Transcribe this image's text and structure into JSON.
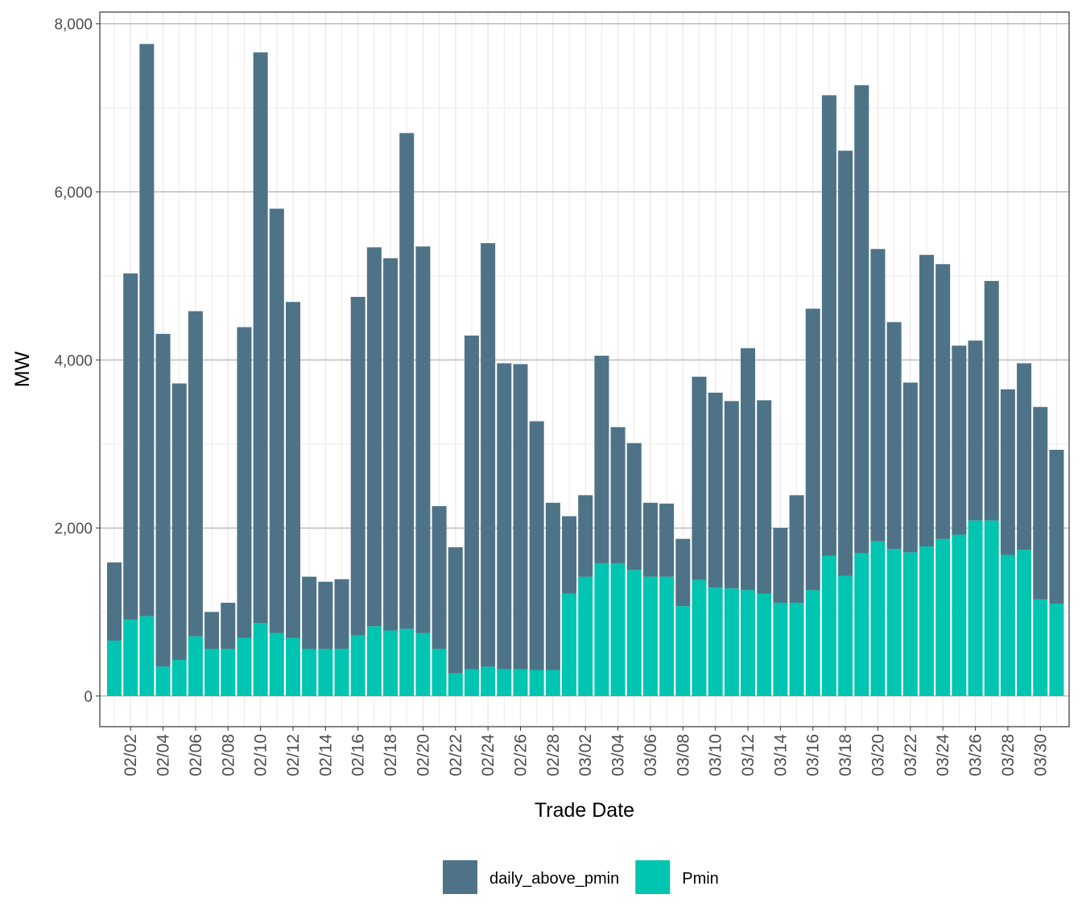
{
  "chart_data": {
    "type": "stacked_bar",
    "x_label": "Trade Date",
    "y_label": "MW",
    "categories": [
      null,
      "02/02",
      null,
      "02/04",
      null,
      "02/06",
      null,
      "02/08",
      null,
      "02/10",
      null,
      "02/12",
      null,
      "02/14",
      null,
      "02/16",
      null,
      "02/18",
      null,
      "02/20",
      null,
      "02/22",
      null,
      "02/24",
      null,
      "02/26",
      null,
      "02/28",
      null,
      "03/02",
      null,
      "03/04",
      null,
      "03/06",
      null,
      "03/08",
      null,
      "03/10",
      null,
      "03/12",
      null,
      "03/14",
      null,
      "03/16",
      null,
      "03/18",
      null,
      "03/20",
      null,
      "03/22",
      null,
      "03/24",
      null,
      "03/26",
      null,
      "03/28",
      null,
      "03/30",
      null
    ],
    "series": [
      {
        "name": "daily_above_pmin",
        "color": "#4e7387",
        "values": [
          930,
          4120,
          6810,
          3960,
          3290,
          3870,
          440,
          550,
          3700,
          6790,
          5050,
          4000,
          860,
          800,
          830,
          4030,
          4510,
          4430,
          5900,
          4600,
          1700,
          1500,
          3970,
          5040,
          3640,
          3630,
          2960,
          1990,
          920,
          970,
          2470,
          1620,
          1510,
          880,
          870,
          800,
          2420,
          2320,
          2230,
          2880,
          2300,
          890,
          1280,
          3350,
          5480,
          5060,
          5570,
          3480,
          2700,
          2020,
          3470,
          3270,
          2250,
          2140,
          2850,
          1970,
          2220,
          2290,
          1830
        ]
      },
      {
        "name": "Pmin",
        "color": "#00c5b0",
        "values": [
          660,
          910,
          950,
          350,
          430,
          710,
          560,
          560,
          690,
          870,
          750,
          690,
          560,
          560,
          560,
          720,
          830,
          780,
          800,
          750,
          560,
          270,
          320,
          350,
          320,
          320,
          310,
          310,
          1220,
          1420,
          1580,
          1580,
          1500,
          1420,
          1420,
          1070,
          1380,
          1290,
          1280,
          1260,
          1220,
          1110,
          1110,
          1260,
          1670,
          1430,
          1700,
          1840,
          1750,
          1710,
          1780,
          1870,
          1920,
          2090,
          2090,
          1680,
          1740,
          1150,
          1100
        ]
      }
    ],
    "stack_order": [
      "Pmin",
      "daily_above_pmin"
    ],
    "ylim": [
      -365,
      8140
    ],
    "yticks": [
      0,
      {
        "value": 2000,
        "label": "2,000"
      },
      {
        "value": 4000,
        "label": "4,000"
      },
      {
        "value": 6000,
        "label": "6,000"
      },
      {
        "value": 8000,
        "label": "8,000"
      }
    ],
    "grid": true,
    "legend": "bottom"
  }
}
